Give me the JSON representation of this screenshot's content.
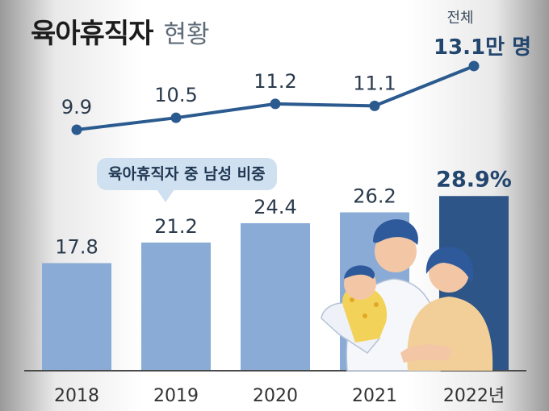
{
  "title": {
    "main": "육아휴직자",
    "sub": "현황"
  },
  "total": {
    "label": "전체",
    "value": "13.1만 명"
  },
  "callout": "육아휴직자 중 남성 비중",
  "colors": {
    "bar": "#8aabd6",
    "bar_last": "#2e5587",
    "line": "#2b5a8f",
    "text_dark": "#2a3a4c",
    "label_last": "#23466e",
    "axis": "#4a4a4a"
  },
  "chart_data": [
    {
      "type": "line",
      "categories": [
        "2018",
        "2019",
        "2020",
        "2021",
        "2022"
      ],
      "values": [
        9.9,
        10.5,
        11.2,
        11.1,
        13.1
      ],
      "data_labels": [
        "9.9",
        "10.5",
        "11.2",
        "11.1",
        ""
      ]
    },
    {
      "type": "bar",
      "categories": [
        "2018",
        "2019",
        "2020",
        "2021",
        "2022년"
      ],
      "values": [
        17.8,
        21.2,
        24.4,
        26.2,
        28.9
      ],
      "data_labels": [
        "17.8",
        "21.2",
        "24.4",
        "26.2",
        "28.9%"
      ],
      "highlight_last": true
    }
  ]
}
